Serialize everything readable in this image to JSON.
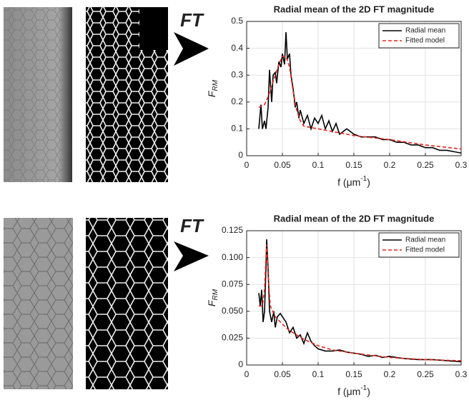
{
  "chart_data": [
    {
      "type": "line",
      "title": "Radial mean of the 2D FT magnitude",
      "annotation": "FT",
      "ylabel": "F",
      "ylabel_sub": "RM",
      "xlabel": "f (μm",
      "xlabel_sup": "-1",
      "xlabel_end": ")",
      "xlim": [
        0,
        0.3
      ],
      "xticks": [
        0,
        0.05,
        0.1,
        0.15,
        0.2,
        0.25,
        0.3
      ],
      "ylim": [
        0,
        0.5
      ],
      "yticks": [
        0,
        0.1,
        0.2,
        0.3,
        0.4,
        0.5
      ],
      "grid": true,
      "legend": "upper right",
      "series": [
        {
          "name": "Radial mean",
          "color": "#000000",
          "style": "solid",
          "x": [
            0.017,
            0.02,
            0.022,
            0.025,
            0.027,
            0.03,
            0.032,
            0.035,
            0.037,
            0.04,
            0.042,
            0.045,
            0.048,
            0.05,
            0.053,
            0.055,
            0.057,
            0.06,
            0.062,
            0.065,
            0.068,
            0.07,
            0.073,
            0.075,
            0.08,
            0.085,
            0.09,
            0.095,
            0.1,
            0.105,
            0.11,
            0.115,
            0.12,
            0.125,
            0.13,
            0.14,
            0.15,
            0.16,
            0.17,
            0.18,
            0.19,
            0.2,
            0.21,
            0.22,
            0.23,
            0.24,
            0.25,
            0.26,
            0.27,
            0.28,
            0.29,
            0.3
          ],
          "values": [
            0.1,
            0.19,
            0.1,
            0.13,
            0.1,
            0.18,
            0.32,
            0.2,
            0.3,
            0.31,
            0.27,
            0.35,
            0.33,
            0.38,
            0.34,
            0.46,
            0.36,
            0.38,
            0.3,
            0.25,
            0.18,
            0.2,
            0.14,
            0.17,
            0.12,
            0.15,
            0.1,
            0.14,
            0.12,
            0.15,
            0.1,
            0.13,
            0.09,
            0.12,
            0.08,
            0.1,
            0.08,
            0.07,
            0.07,
            0.07,
            0.06,
            0.06,
            0.05,
            0.05,
            0.04,
            0.04,
            0.03,
            0.03,
            0.02,
            0.02,
            0.015,
            0.01
          ]
        },
        {
          "name": "Fitted model",
          "color": "#e8261c",
          "style": "dashed",
          "x": [
            0.017,
            0.025,
            0.03,
            0.035,
            0.04,
            0.045,
            0.05,
            0.055,
            0.06,
            0.065,
            0.07,
            0.075,
            0.08,
            0.09,
            0.1,
            0.12,
            0.15,
            0.2,
            0.25,
            0.3
          ],
          "values": [
            0.18,
            0.19,
            0.22,
            0.26,
            0.3,
            0.34,
            0.37,
            0.37,
            0.33,
            0.24,
            0.17,
            0.13,
            0.11,
            0.105,
            0.1,
            0.09,
            0.075,
            0.06,
            0.04,
            0.025
          ]
        }
      ]
    },
    {
      "type": "line",
      "title": "Radial mean of the 2D FT magnitude",
      "annotation": "FT",
      "ylabel": "F",
      "ylabel_sub": "RM",
      "xlabel": "f (μm",
      "xlabel_sup": "-1",
      "xlabel_end": ")",
      "xlim": [
        0,
        0.3
      ],
      "xticks": [
        0,
        0.05,
        0.1,
        0.15,
        0.2,
        0.25,
        0.3
      ],
      "ylim": [
        0,
        0.125
      ],
      "yticks": [
        0,
        0.025,
        {
          "value": 0.05,
          "label": "0.050"
        },
        0.075,
        {
          "value": 0.1,
          "label": "0.100"
        },
        0.125
      ],
      "grid": true,
      "legend": "upper right",
      "series": [
        {
          "name": "Radial mean",
          "color": "#000000",
          "style": "solid",
          "x": [
            0.017,
            0.019,
            0.021,
            0.023,
            0.025,
            0.027,
            0.028,
            0.03,
            0.032,
            0.035,
            0.038,
            0.04,
            0.043,
            0.047,
            0.05,
            0.055,
            0.06,
            0.065,
            0.07,
            0.075,
            0.08,
            0.085,
            0.09,
            0.095,
            0.1,
            0.11,
            0.12,
            0.13,
            0.14,
            0.15,
            0.16,
            0.17,
            0.18,
            0.19,
            0.2,
            0.22,
            0.24,
            0.26,
            0.28,
            0.3
          ],
          "values": [
            0.067,
            0.055,
            0.07,
            0.04,
            0.05,
            0.09,
            0.117,
            0.09,
            0.05,
            0.04,
            0.05,
            0.035,
            0.045,
            0.048,
            0.045,
            0.04,
            0.03,
            0.035,
            0.025,
            0.028,
            0.02,
            0.03,
            0.022,
            0.018,
            0.015,
            0.013,
            0.013,
            0.014,
            0.012,
            0.011,
            0.01,
            0.008,
            0.009,
            0.007,
            0.008,
            0.006,
            0.005,
            0.005,
            0.004,
            0.003
          ]
        },
        {
          "name": "Fitted model",
          "color": "#e8261c",
          "style": "dashed",
          "x": [
            0.017,
            0.022,
            0.025,
            0.027,
            0.028,
            0.03,
            0.033,
            0.04,
            0.05,
            0.06,
            0.07,
            0.08,
            0.1,
            0.12,
            0.15,
            0.2,
            0.25,
            0.3
          ],
          "values": [
            0.055,
            0.055,
            0.07,
            0.1,
            0.112,
            0.085,
            0.055,
            0.045,
            0.038,
            0.032,
            0.028,
            0.024,
            0.018,
            0.014,
            0.011,
            0.007,
            0.005,
            0.004
          ]
        }
      ]
    }
  ]
}
